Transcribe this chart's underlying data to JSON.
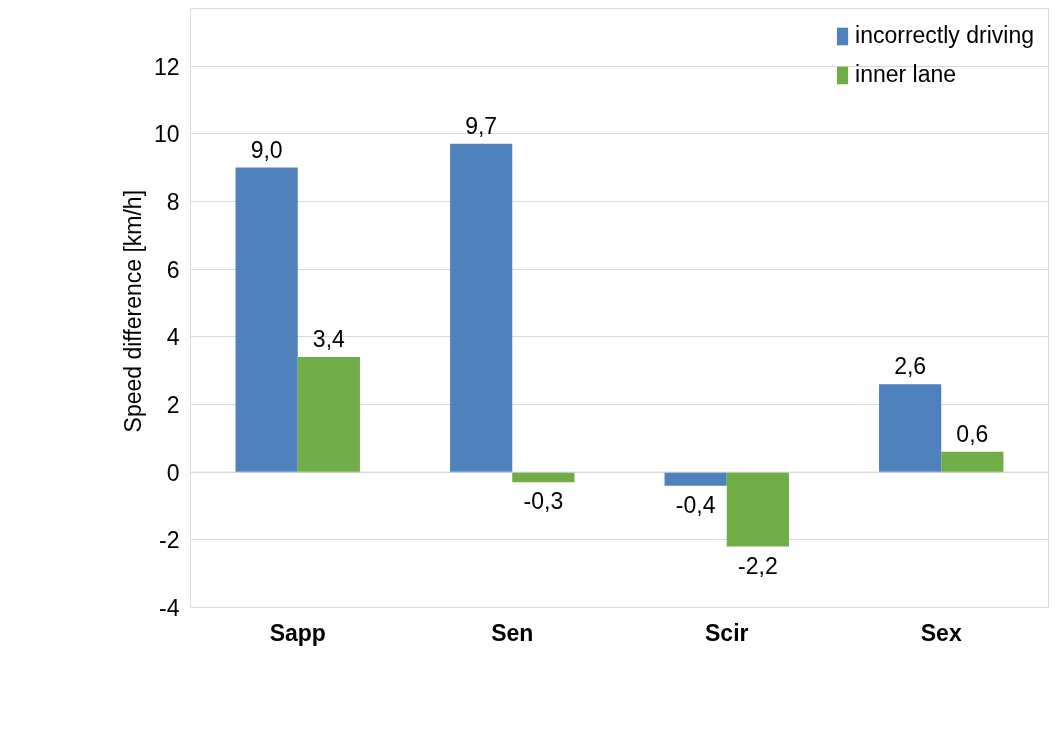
{
  "chart_data": {
    "type": "bar",
    "ylabel": "Speed difference  [km/h]",
    "categories": [
      "Sapp",
      "Sen",
      "Scir",
      "Sex"
    ],
    "series": [
      {
        "name": "incorrectly driving",
        "color": "#4f81bd",
        "values": [
          9.0,
          9.7,
          -0.4,
          2.6
        ],
        "value_labels": [
          "9,0",
          "9,7",
          "-0,4",
          "2,6"
        ]
      },
      {
        "name": "inner lane",
        "color": "#70ad47",
        "values": [
          3.4,
          -0.3,
          -2.2,
          0.6
        ],
        "value_labels": [
          "3,4",
          "-0,3",
          "-2,2",
          "0,6"
        ]
      }
    ],
    "ylim": [
      -4,
      13.7
    ],
    "yticks": [
      -4,
      -2,
      0,
      2,
      4,
      6,
      8,
      10,
      12
    ],
    "grid": "y",
    "legend": "top right"
  }
}
